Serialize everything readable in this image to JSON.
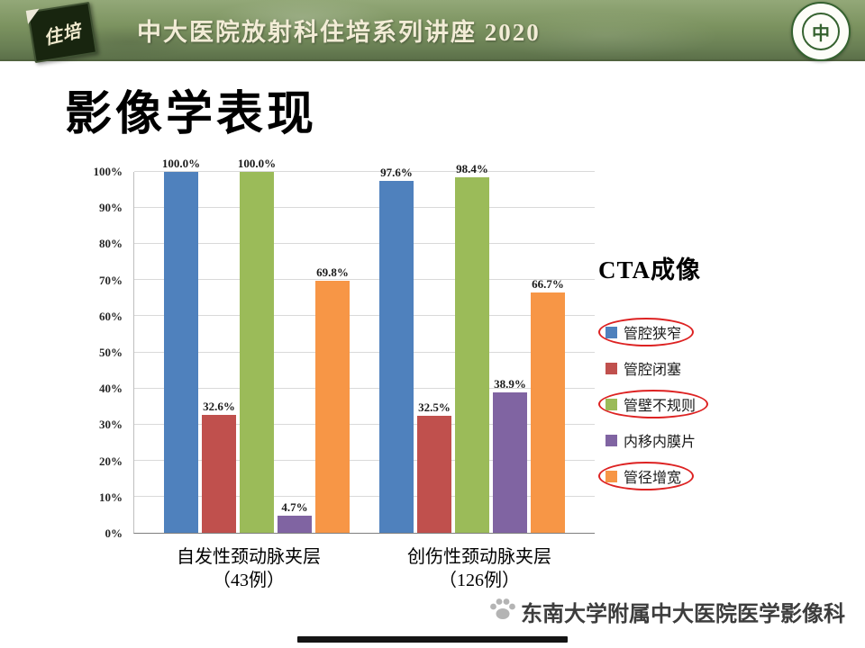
{
  "header": {
    "badge_text": "住培",
    "title": "中大医院放射科住培系列讲座 2020"
  },
  "page_title": "影像学表现",
  "annotation": {
    "heading": "CTA成像"
  },
  "chart_data": {
    "type": "bar",
    "categories": [
      {
        "label": "自发性颈动脉夹层",
        "sublabel": "（43例）"
      },
      {
        "label": "创伤性颈动脉夹层",
        "sublabel": "（126例）"
      }
    ],
    "series": [
      {
        "name": "管腔狭窄",
        "color": "#4f81bd",
        "values": [
          100.0,
          97.6
        ],
        "labels": [
          "100.0%",
          "97.6%"
        ],
        "circled": true
      },
      {
        "name": "管腔闭塞",
        "color": "#c0504d",
        "values": [
          32.6,
          32.5
        ],
        "labels": [
          "32.6%",
          "32.5%"
        ],
        "circled": false
      },
      {
        "name": "管壁不规则",
        "color": "#9bbb59",
        "values": [
          100.0,
          98.4
        ],
        "labels": [
          "100.0%",
          "98.4%"
        ],
        "circled": true
      },
      {
        "name": "内移内膜片",
        "color": "#8064a2",
        "values": [
          4.7,
          38.9
        ],
        "labels": [
          "4.7%",
          "38.9%"
        ],
        "circled": false
      },
      {
        "name": "管径增宽",
        "color": "#f79646",
        "values": [
          69.8,
          66.7
        ],
        "labels": [
          "69.8%",
          "66.7%"
        ],
        "circled": true
      }
    ],
    "ylim": [
      0,
      100
    ],
    "ytick_step": 10,
    "ytick_suffix": "%",
    "grid": true,
    "legend_position": "right",
    "highlight_color": "#dd2222"
  },
  "footer": {
    "text": "东南大学附属中大医院医学影像科"
  }
}
